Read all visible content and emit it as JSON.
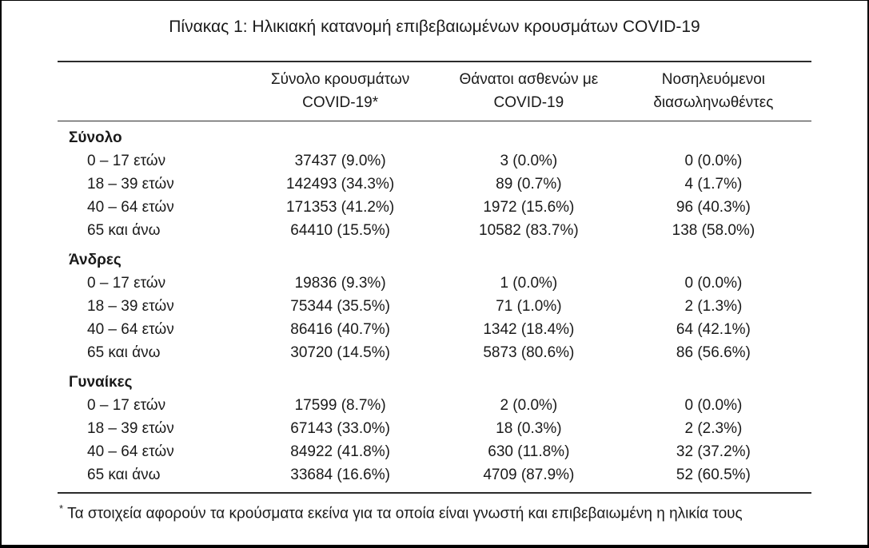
{
  "title": "Πίνακας 1: Ηλικιακή κατανομή επιβεβαιωμένων κρουσμάτων COVID-19",
  "table": {
    "headers": [
      {
        "line1": "Σύνολο κρουσμάτων",
        "line2": "COVID-19*"
      },
      {
        "line1": "Θάνατοι ασθενών με",
        "line2": "COVID-19"
      },
      {
        "line1": "Νοσηλευόμενοι",
        "line2": "διασωληνωθέντες"
      }
    ],
    "sections": [
      {
        "label": "Σύνολο",
        "rows": [
          {
            "label": "0 – 17 ετών",
            "cases": "37437 (9.0%)",
            "deaths": "3 (0.0%)",
            "intubated": "0 (0.0%)"
          },
          {
            "label": "18 – 39 ετών",
            "cases": "142493 (34.3%)",
            "deaths": "89 (0.7%)",
            "intubated": "4 (1.7%)"
          },
          {
            "label": "40 – 64 ετών",
            "cases": "171353 (41.2%)",
            "deaths": "1972 (15.6%)",
            "intubated": "96 (40.3%)"
          },
          {
            "label": "65 και άνω",
            "cases": "64410 (15.5%)",
            "deaths": "10582 (83.7%)",
            "intubated": "138 (58.0%)"
          }
        ]
      },
      {
        "label": "Άνδρες",
        "rows": [
          {
            "label": "0 – 17 ετών",
            "cases": "19836 (9.3%)",
            "deaths": "1 (0.0%)",
            "intubated": "0 (0.0%)"
          },
          {
            "label": "18 – 39 ετών",
            "cases": "75344 (35.5%)",
            "deaths": "71 (1.0%)",
            "intubated": "2 (1.3%)"
          },
          {
            "label": "40 – 64 ετών",
            "cases": "86416 (40.7%)",
            "deaths": "1342 (18.4%)",
            "intubated": "64 (42.1%)"
          },
          {
            "label": "65 και άνω",
            "cases": "30720 (14.5%)",
            "deaths": "5873 (80.6%)",
            "intubated": "86 (56.6%)"
          }
        ]
      },
      {
        "label": "Γυναίκες",
        "rows": [
          {
            "label": "0 – 17 ετών",
            "cases": "17599 (8.7%)",
            "deaths": "2 (0.0%)",
            "intubated": "0 (0.0%)"
          },
          {
            "label": "18 – 39 ετών",
            "cases": "67143 (33.0%)",
            "deaths": "18 (0.3%)",
            "intubated": "2 (2.3%)"
          },
          {
            "label": "40 – 64 ετών",
            "cases": "84922 (41.8%)",
            "deaths": "630 (11.8%)",
            "intubated": "32 (37.2%)"
          },
          {
            "label": "65 και άνω",
            "cases": "33684 (16.6%)",
            "deaths": "4709 (87.9%)",
            "intubated": "52 (60.5%)"
          }
        ]
      }
    ]
  },
  "footnote": {
    "marker": "*",
    "text": "Τα στοιχεία αφορούν τα κρούσματα εκείνα για τα οποία είναι γνωστή και επιβεβαιωμένη η ηλικία τους"
  }
}
